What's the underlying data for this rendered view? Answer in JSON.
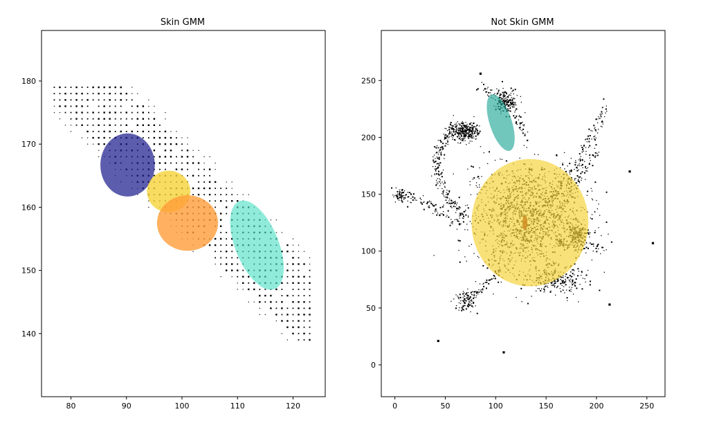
{
  "chart_data": [
    {
      "type": "scatter",
      "title": "Skin GMM",
      "xlabel": "",
      "ylabel": "",
      "xlim": [
        74.7,
        125.8
      ],
      "ylim": [
        130.0,
        188.0
      ],
      "xticks": [
        80,
        90,
        100,
        110,
        120
      ],
      "yticks": [
        140,
        150,
        160,
        170,
        180
      ],
      "grid": false,
      "point_clouds": [
        {
          "name": "",
          "x_range": [
            77,
            123
          ],
          "y_range": [
            139,
            179
          ],
          "spacing": 1,
          "ridge": {
            "x0": 90,
            "y0": 172,
            "slope": -0.85,
            "half_width": 9
          },
          "description_color": "#000000"
        }
      ],
      "ellipses": [
        {
          "cx": 90.2,
          "cy": 166.7,
          "w": 9.8,
          "h": 10.0,
          "angle": 0,
          "color": "#1f1f8f",
          "opacity": 0.72
        },
        {
          "cx": 97.6,
          "cy": 162.5,
          "w": 7.8,
          "h": 6.6,
          "angle": 0,
          "color": "#f5d33a",
          "opacity": 0.8
        },
        {
          "cx": 101.0,
          "cy": 157.5,
          "w": 11.0,
          "h": 8.8,
          "angle": 0,
          "color": "#ff9e3a",
          "opacity": 0.8
        },
        {
          "cx": 113.5,
          "cy": 154.0,
          "w": 7.8,
          "h": 15.0,
          "angle": 22,
          "color": "#54e0c8",
          "opacity": 0.65
        }
      ]
    },
    {
      "type": "scatter",
      "title": "Not Skin GMM",
      "xlabel": "",
      "ylabel": "",
      "xlim": [
        -13.5,
        268.0
      ],
      "ylim": [
        -28.0,
        294.0
      ],
      "xticks": [
        0,
        50,
        100,
        150,
        200,
        250
      ],
      "yticks": [
        0,
        50,
        100,
        150,
        200,
        250
      ],
      "grid": false,
      "point_clusters": [
        {
          "cx": 130,
          "cy": 130,
          "rx": 55,
          "ry": 45,
          "n": 1400
        },
        {
          "cx": 70,
          "cy": 205,
          "rx": 12,
          "ry": 8,
          "n": 260
        },
        {
          "cx": 110,
          "cy": 232,
          "rx": 12,
          "ry": 9,
          "n": 160
        },
        {
          "cx": 182,
          "cy": 115,
          "rx": 10,
          "ry": 9,
          "n": 160
        },
        {
          "cx": 160,
          "cy": 75,
          "rx": 30,
          "ry": 14,
          "n": 220
        },
        {
          "cx": 70,
          "cy": 55,
          "rx": 10,
          "ry": 10,
          "n": 80
        },
        {
          "cx": 5,
          "cy": 148,
          "rx": 6,
          "ry": 6,
          "n": 60
        }
      ],
      "point_arcs": [
        {
          "from": [
            60,
            210
          ],
          "via": [
            20,
            170
          ],
          "to": [
            70,
            130
          ],
          "n": 220
        },
        {
          "from": [
            10,
            150
          ],
          "via": [
            40,
            140
          ],
          "to": [
            70,
            120
          ],
          "n": 80
        },
        {
          "from": [
            150,
            140
          ],
          "via": [
            180,
            170
          ],
          "to": [
            212,
            230
          ],
          "n": 160
        },
        {
          "from": [
            130,
            200
          ],
          "via": [
            120,
            230
          ],
          "to": [
            85,
            245
          ],
          "n": 90
        },
        {
          "from": [
            160,
            130
          ],
          "via": [
            180,
            160
          ],
          "to": [
            200,
            190
          ],
          "n": 90
        },
        {
          "from": [
            160,
            110
          ],
          "via": [
            180,
            100
          ],
          "to": [
            212,
            105
          ],
          "n": 80
        },
        {
          "from": [
            110,
            90
          ],
          "via": [
            90,
            70
          ],
          "to": [
            70,
            55
          ],
          "n": 80
        }
      ],
      "isolated_points": [
        [
          85,
          256
        ],
        [
          233,
          170
        ],
        [
          256,
          107
        ],
        [
          213,
          53
        ],
        [
          43,
          21
        ],
        [
          108,
          11
        ]
      ],
      "ellipses": [
        {
          "cx": 134,
          "cy": 125,
          "w": 116,
          "h": 112,
          "angle": 0,
          "color": "#f5d33a",
          "opacity": 0.68
        },
        {
          "cx": 105,
          "cy": 213,
          "w": 22,
          "h": 52,
          "angle": 18,
          "color": "#27a99a",
          "opacity": 0.65
        },
        {
          "cx": 129,
          "cy": 125,
          "w": 5,
          "h": 13,
          "angle": 0,
          "color": "#d08a20",
          "opacity": 0.8
        }
      ]
    }
  ]
}
